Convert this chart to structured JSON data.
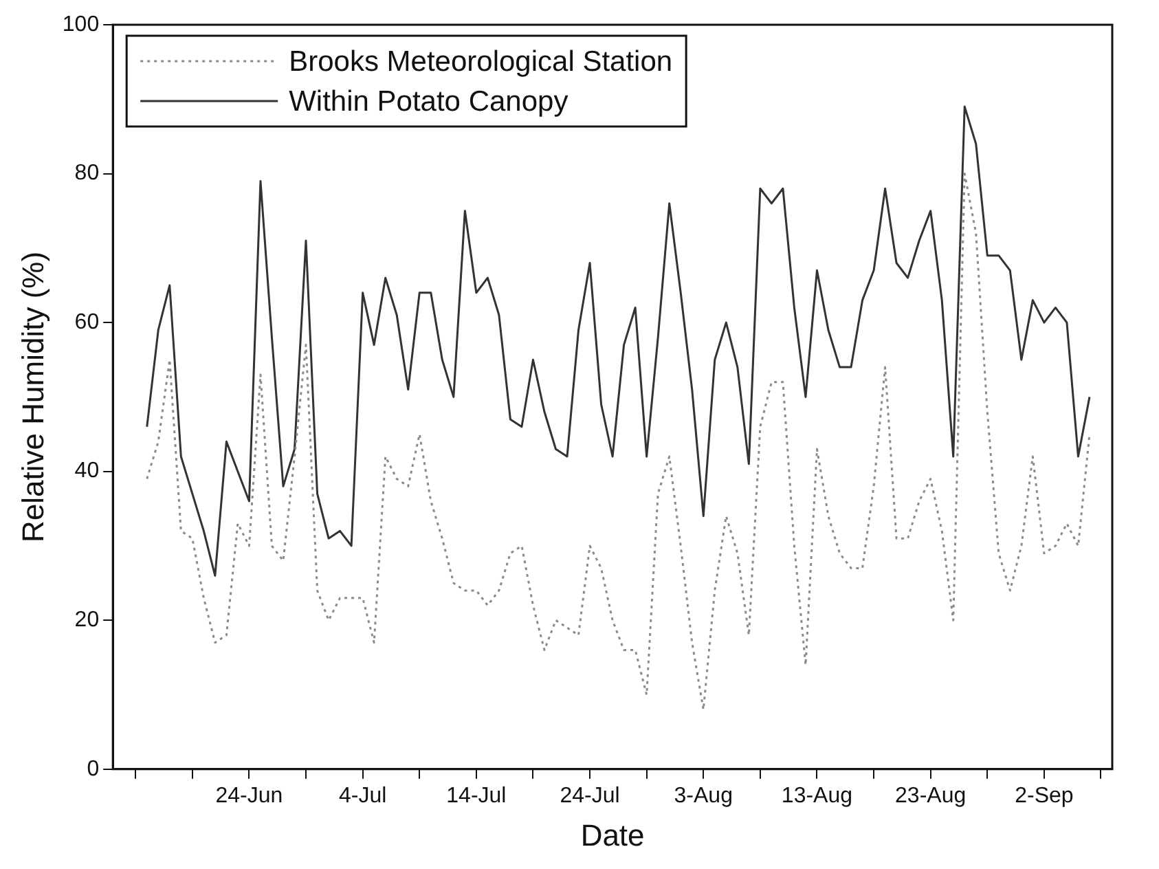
{
  "chart_data": {
    "type": "line",
    "xlabel": "Date",
    "ylabel": "Relative Humidity (%)",
    "legend": "top left",
    "marker": "none",
    "grid": false,
    "x": [
      "--06-15",
      "--06-16",
      "--06-17",
      "--06-18",
      "--06-19",
      "--06-20",
      "--06-21",
      "--06-22",
      "--06-23",
      "--06-24",
      "--06-25",
      "--06-26",
      "--06-27",
      "--06-28",
      "--06-29",
      "--06-30",
      "--07-01",
      "--07-02",
      "--07-03",
      "--07-04",
      "--07-05",
      "--07-06",
      "--07-07",
      "--07-08",
      "--07-09",
      "--07-10",
      "--07-11",
      "--07-12",
      "--07-13",
      "--07-14",
      "--07-15",
      "--07-16",
      "--07-17",
      "--07-18",
      "--07-19",
      "--07-20",
      "--07-21",
      "--07-22",
      "--07-23",
      "--07-24",
      "--07-25",
      "--07-26",
      "--07-27",
      "--07-28",
      "--07-29",
      "--07-30",
      "--07-31",
      "--08-01",
      "--08-02",
      "--08-03",
      "--08-04",
      "--08-05",
      "--08-06",
      "--08-07",
      "--08-08",
      "--08-09",
      "--08-10",
      "--08-11",
      "--08-12",
      "--08-13",
      "--08-14",
      "--08-15",
      "--08-16",
      "--08-17",
      "--08-18",
      "--08-19",
      "--08-20",
      "--08-21",
      "--08-22",
      "--08-23",
      "--08-24",
      "--08-25",
      "--08-26",
      "--08-27",
      "--08-28",
      "--08-29",
      "--08-30",
      "--08-31",
      "--09-01",
      "--09-02",
      "--09-03",
      "--09-04",
      "--09-05",
      "--09-06"
    ],
    "series": [
      {
        "name": "Brooks Meteorological Station",
        "color": "#8a8a8a",
        "line_style": "dotted",
        "values": [
          39,
          44,
          55,
          32,
          31,
          23,
          17,
          18,
          33,
          30,
          53,
          30,
          28,
          42,
          57,
          24,
          20,
          23,
          23,
          23,
          17,
          42,
          39,
          38,
          45,
          36,
          31,
          25,
          24,
          24,
          22,
          24,
          29,
          30,
          22,
          16,
          20,
          19,
          18,
          30,
          27,
          20,
          16,
          16,
          10,
          37,
          42,
          30,
          17,
          8,
          24,
          34,
          29,
          18,
          46,
          52,
          52,
          30,
          14,
          43,
          34,
          29,
          27,
          27,
          38,
          54,
          31,
          31,
          36,
          39,
          32,
          20,
          80,
          72,
          48,
          29,
          24,
          30,
          42,
          29,
          30,
          33,
          30,
          45
        ]
      },
      {
        "name": "Within Potato Canopy",
        "color": "#333333",
        "line_style": "solid",
        "values": [
          46,
          59,
          65,
          42,
          37,
          32,
          26,
          44,
          40,
          36,
          79,
          58,
          38,
          43,
          71,
          37,
          31,
          32,
          30,
          64,
          57,
          66,
          61,
          51,
          64,
          64,
          55,
          50,
          75,
          64,
          66,
          61,
          47,
          46,
          55,
          48,
          43,
          42,
          59,
          68,
          49,
          42,
          57,
          62,
          42,
          58,
          76,
          64,
          51,
          34,
          55,
          60,
          54,
          41,
          78,
          76,
          78,
          62,
          50,
          67,
          59,
          54,
          54,
          63,
          67,
          78,
          68,
          66,
          71,
          75,
          63,
          42,
          89,
          84,
          69,
          69,
          67,
          55,
          63,
          60,
          62,
          60,
          42,
          50
        ]
      }
    ],
    "xlim": [
      "--06-12",
      "--09-08"
    ],
    "xticks": [
      {
        "value": "--06-14",
        "label": null
      },
      {
        "value": "--06-19",
        "label": null
      },
      {
        "value": "--06-24",
        "label": "24-Jun"
      },
      {
        "value": "--06-29",
        "label": null
      },
      {
        "value": "--07-04",
        "label": "4-Jul"
      },
      {
        "value": "--07-09",
        "label": null
      },
      {
        "value": "--07-14",
        "label": "14-Jul"
      },
      {
        "value": "--07-19",
        "label": null
      },
      {
        "value": "--07-24",
        "label": "24-Jul"
      },
      {
        "value": "--07-29",
        "label": null
      },
      {
        "value": "--08-03",
        "label": "3-Aug"
      },
      {
        "value": "--08-08",
        "label": null
      },
      {
        "value": "--08-13",
        "label": "13-Aug"
      },
      {
        "value": "--08-18",
        "label": null
      },
      {
        "value": "--08-23",
        "label": "23-Aug"
      },
      {
        "value": "--08-28",
        "label": null
      },
      {
        "value": "--09-02",
        "label": "2-Sep"
      },
      {
        "value": "--09-07",
        "label": null
      }
    ],
    "ylim": [
      0,
      100
    ],
    "yticks": [
      0,
      20,
      40,
      60,
      80,
      100
    ]
  }
}
